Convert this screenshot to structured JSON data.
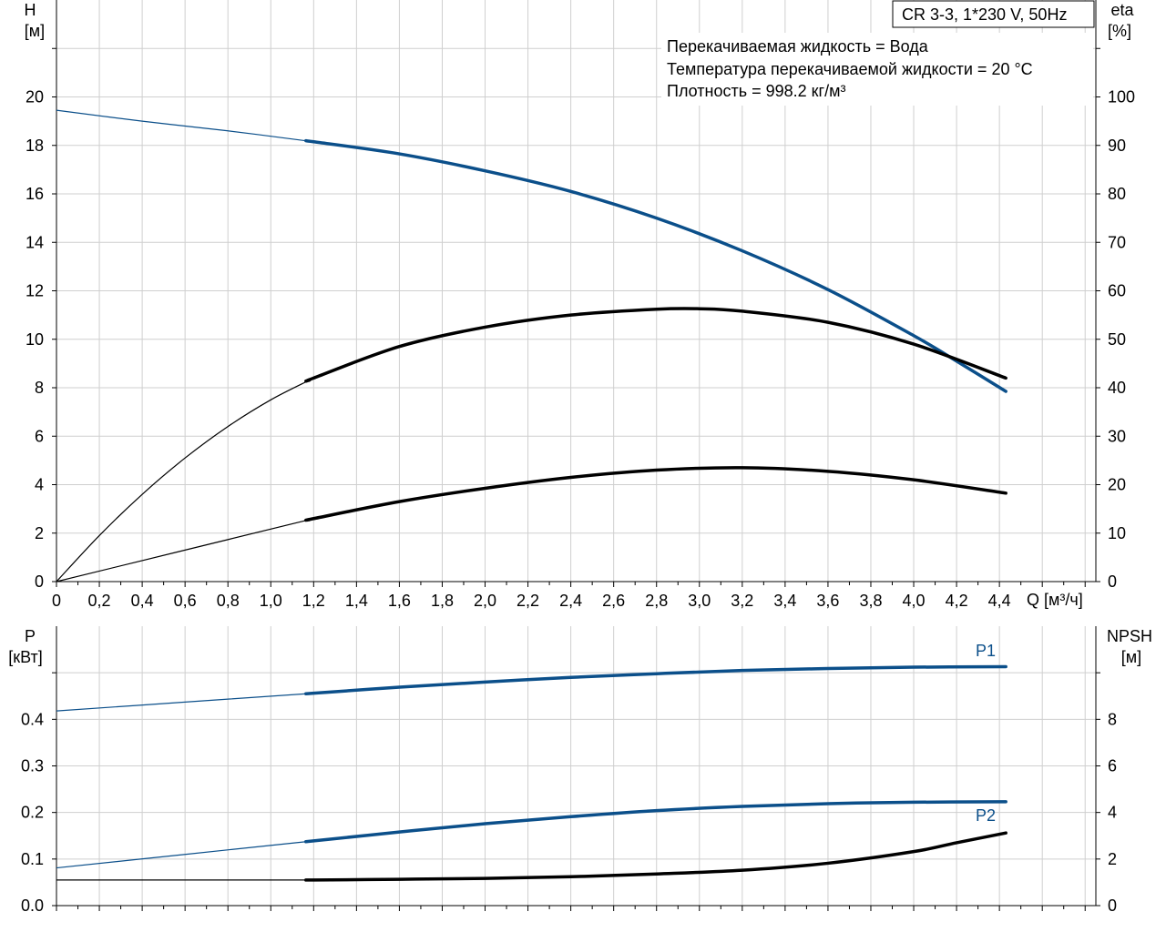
{
  "chart_data": [
    {
      "type": "line",
      "title_box": "CR 3-3, 1*230 V, 50Hz",
      "info": [
        "Перекачиваемая жидкость = Вода",
        "Температура перекачиваемой жидкости = 20 °C",
        "Плотность = 998.2 кг/м³"
      ],
      "xlabel": "Q [м³/ч]",
      "xlim": [
        0,
        4.85
      ],
      "xticks": [
        "0",
        "0,2",
        "0,4",
        "0,6",
        "0,8",
        "1,0",
        "1,2",
        "1,4",
        "1,6",
        "1,8",
        "2,0",
        "2,2",
        "2,4",
        "2,6",
        "2,8",
        "3,0",
        "3,2",
        "3,4",
        "3,6",
        "3,8",
        "4,0",
        "4,2",
        "4,4"
      ],
      "y_left": {
        "label_top": "H",
        "label_unit": "[м]",
        "lim": [
          0,
          24
        ],
        "ticks": [
          "0",
          "2",
          "4",
          "6",
          "8",
          "10",
          "12",
          "14",
          "16",
          "18",
          "20"
        ]
      },
      "y_right": {
        "label_top": "eta",
        "label_unit": "[%]",
        "lim": [
          0,
          120
        ],
        "ticks": [
          "0",
          "10",
          "20",
          "30",
          "40",
          "50",
          "60",
          "70",
          "80",
          "90",
          "100"
        ]
      },
      "grid": true,
      "series": [
        {
          "axis": "left",
          "color": "#0b4f8a",
          "x": [
            0,
            0.4,
            0.8,
            1.2,
            1.6,
            2.0,
            2.4,
            2.8,
            3.2,
            3.6,
            4.0,
            4.2,
            4.43
          ],
          "y": [
            19.45,
            19.0,
            18.6,
            18.15,
            17.65,
            16.95,
            16.1,
            15.0,
            13.65,
            12.05,
            10.15,
            9.1,
            7.85
          ],
          "operating_from": 1.18
        },
        {
          "axis": "right",
          "color": "#000000",
          "x": [
            0,
            0.2,
            0.4,
            0.6,
            0.8,
            1.0,
            1.2,
            1.6,
            2.0,
            2.4,
            2.8,
            3.0,
            3.2,
            3.6,
            4.0,
            4.43
          ],
          "y": [
            0,
            9.5,
            18,
            25.5,
            32,
            37.5,
            42,
            48.5,
            52.5,
            55,
            56.2,
            56.3,
            55.8,
            53.5,
            49,
            42
          ],
          "operating_from": 1.18
        },
        {
          "axis": "left",
          "color": "#000000",
          "x": [
            0,
            0.6,
            1.2,
            1.6,
            2.0,
            2.4,
            2.8,
            3.2,
            3.6,
            4.0,
            4.43
          ],
          "y": [
            0,
            1.3,
            2.6,
            3.3,
            3.85,
            4.3,
            4.6,
            4.7,
            4.55,
            4.2,
            3.65
          ],
          "operating_from": 1.18
        }
      ]
    },
    {
      "type": "line",
      "xlim": [
        0,
        4.85
      ],
      "y_left": {
        "label_top": "P",
        "label_unit": "[кВт]",
        "lim": [
          0,
          0.6
        ],
        "ticks": [
          "0.0",
          "0.1",
          "0.2",
          "0.3",
          "0.4"
        ]
      },
      "y_right": {
        "label_top": "NPSH",
        "label_unit": "[м]",
        "lim": [
          0,
          12
        ],
        "ticks": [
          "0",
          "2",
          "4",
          "6",
          "8"
        ]
      },
      "grid": true,
      "series": [
        {
          "name": "P1",
          "axis": "left",
          "color": "#0b4f8a",
          "x": [
            0,
            0.6,
            1.2,
            1.6,
            2.0,
            2.4,
            2.8,
            3.2,
            3.6,
            4.0,
            4.43
          ],
          "y": [
            0.418,
            0.437,
            0.456,
            0.469,
            0.48,
            0.49,
            0.498,
            0.505,
            0.509,
            0.512,
            0.513
          ],
          "operating_from": 1.18
        },
        {
          "name": "P2",
          "axis": "left",
          "color": "#0b4f8a",
          "x": [
            0,
            0.6,
            1.2,
            1.6,
            2.0,
            2.4,
            2.8,
            3.2,
            3.6,
            4.0,
            4.43
          ],
          "y": [
            0.081,
            0.11,
            0.139,
            0.158,
            0.176,
            0.191,
            0.204,
            0.213,
            0.219,
            0.222,
            0.223
          ],
          "operating_from": 1.18
        },
        {
          "axis": "right",
          "color": "#000000",
          "x": [
            0,
            0.6,
            1.2,
            1.6,
            2.0,
            2.4,
            2.8,
            3.2,
            3.6,
            4.0,
            4.2,
            4.43
          ],
          "y": [
            1.1,
            1.1,
            1.1,
            1.13,
            1.17,
            1.24,
            1.36,
            1.52,
            1.82,
            2.32,
            2.7,
            3.12
          ],
          "operating_from": 1.18
        }
      ]
    }
  ]
}
